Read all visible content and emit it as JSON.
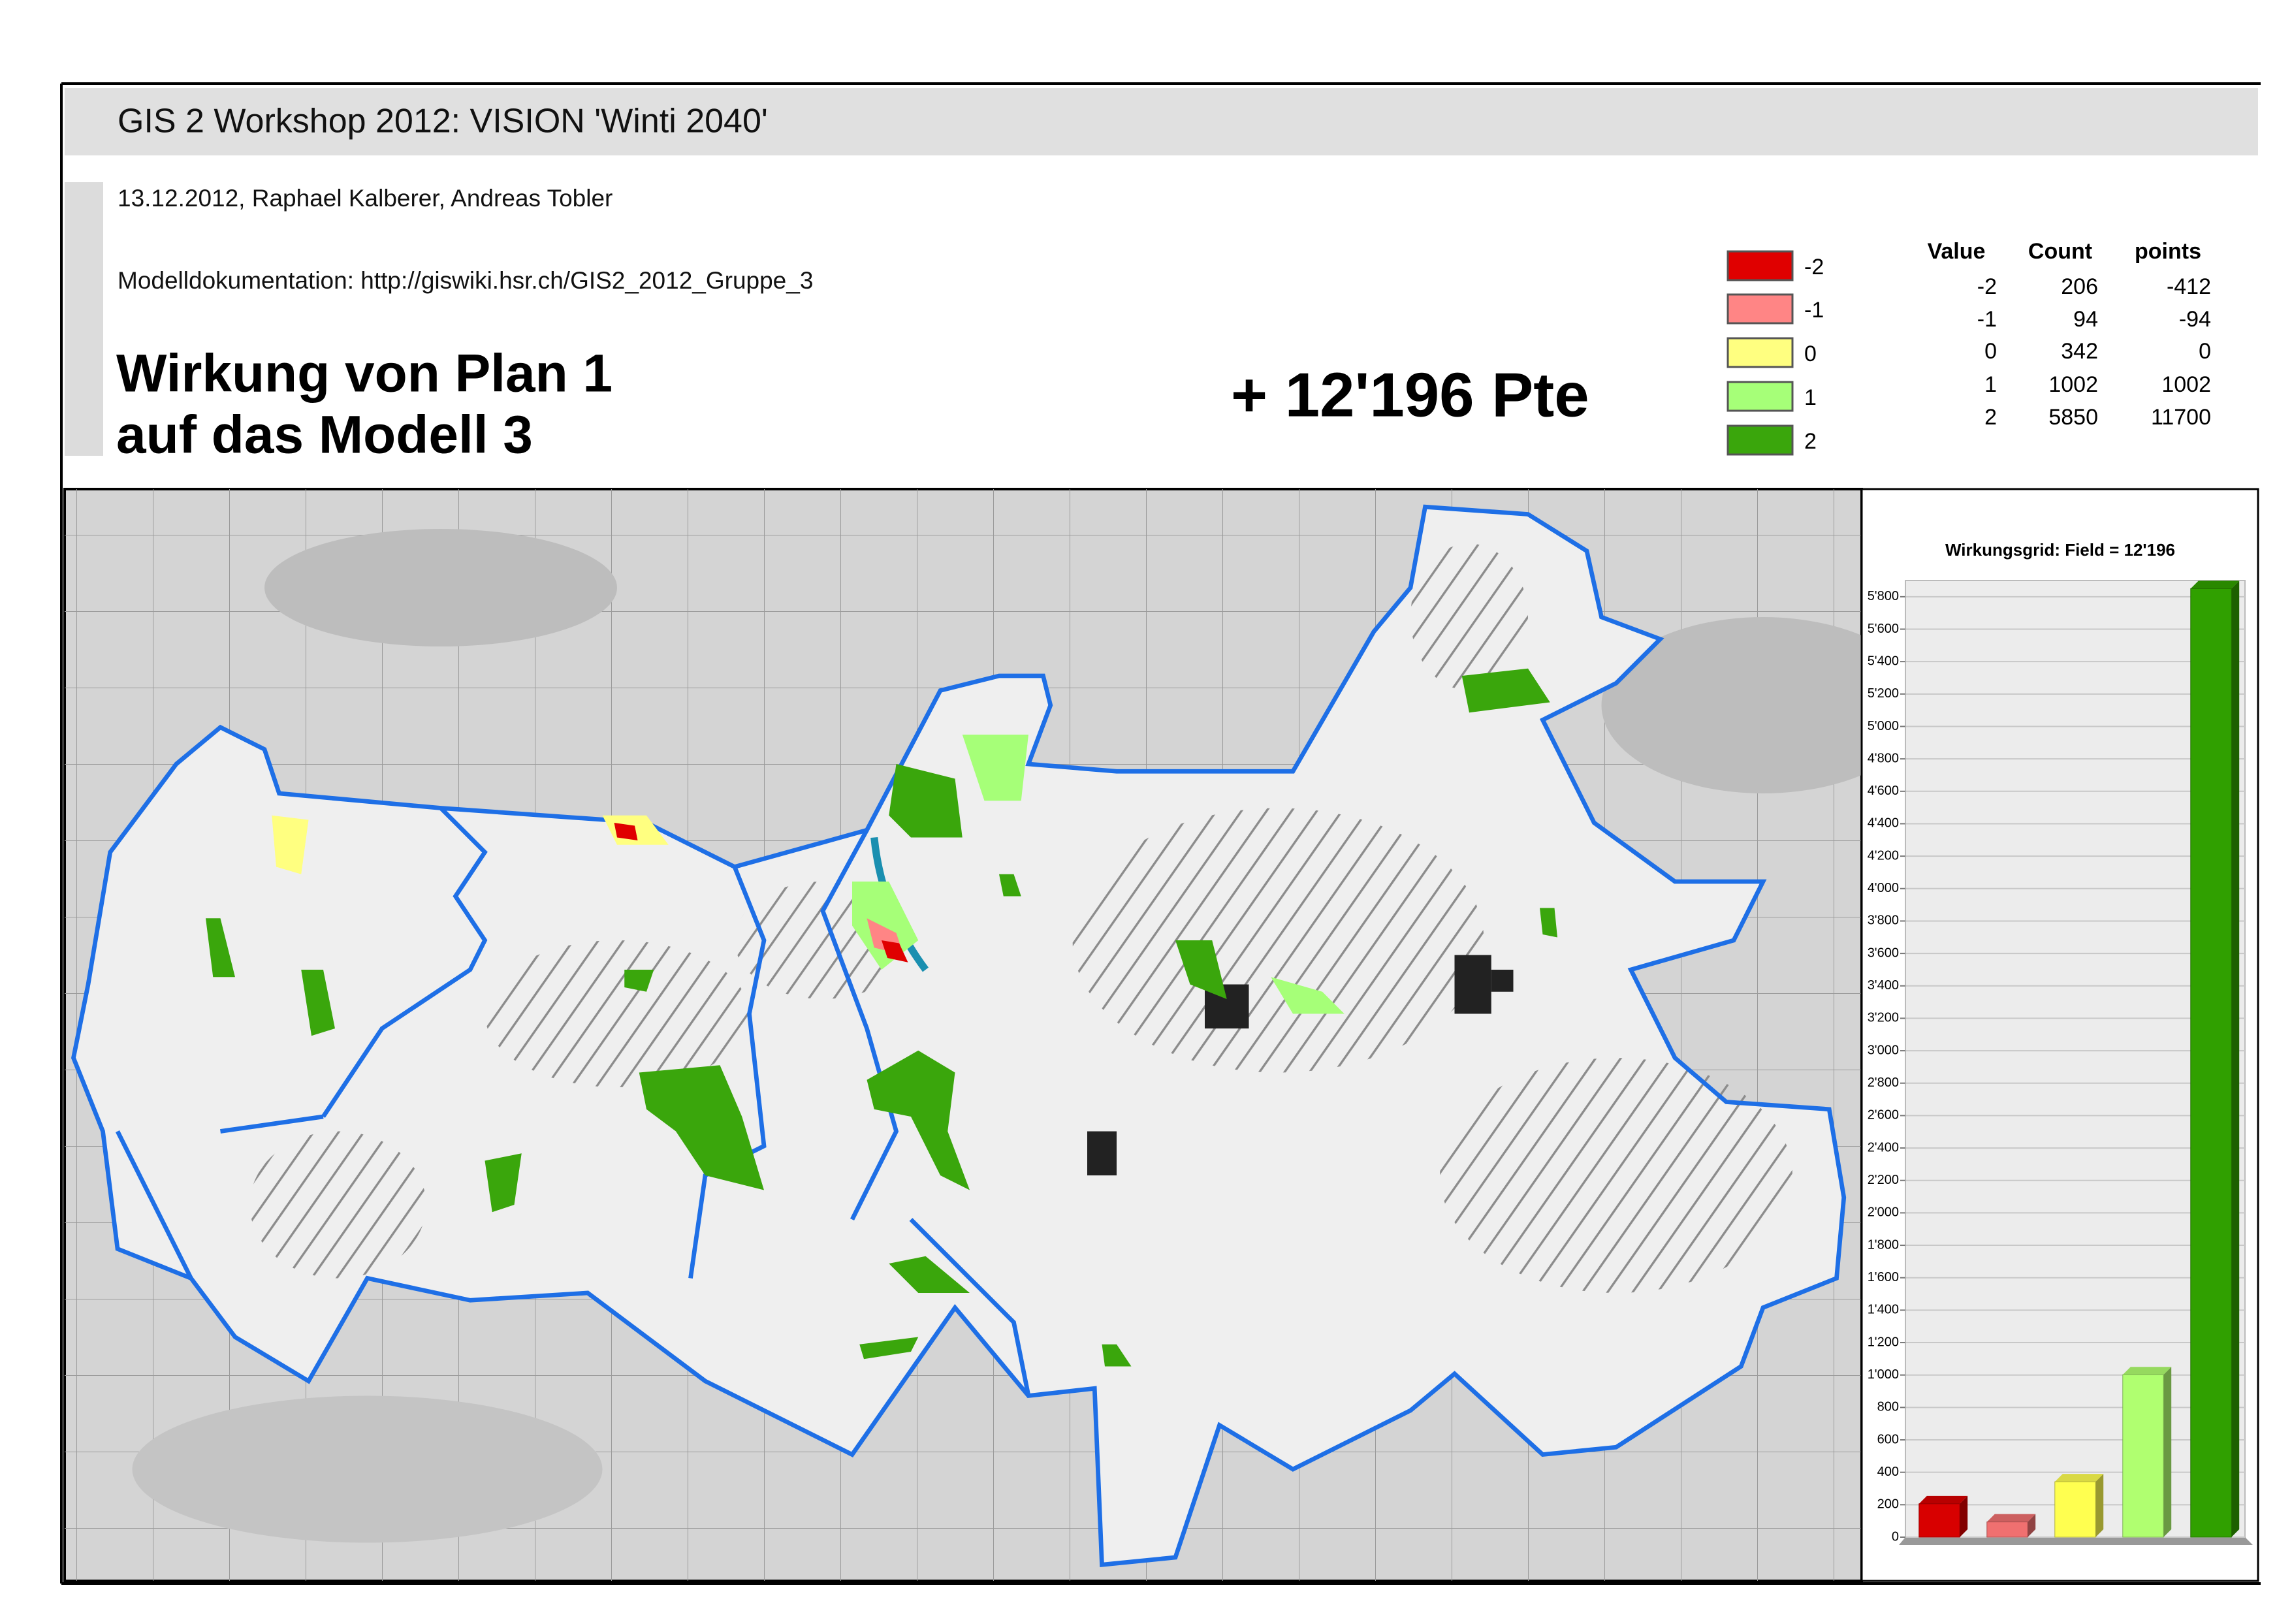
{
  "header": {
    "title": "GIS 2 Workshop 2012: VISION 'Winti 2040'",
    "date_authors": "13.12.2012, Raphael Kalberer, Andreas Tobler",
    "documentation": "Modelldokumentation: http://giswiki.hsr.ch/GIS2_2012_Gruppe_3"
  },
  "heading": [
    "Wirkung von Plan 1",
    "auf das Modell 3"
  ],
  "score": "+ 12'196 Pte",
  "legend": [
    {
      "label": "-2",
      "color": "#e00000"
    },
    {
      "label": "-1",
      "color": "#ff8585"
    },
    {
      "label": "0",
      "color": "#ffff80"
    },
    {
      "label": "1",
      "color": "#a6ff78"
    },
    {
      "label": "2",
      "color": "#3aa60c"
    }
  ],
  "table": {
    "columns": [
      "Value",
      "Count",
      "points"
    ],
    "rows": [
      [
        -2,
        206,
        -412
      ],
      [
        -1,
        94,
        -94
      ],
      [
        0,
        342,
        0
      ],
      [
        1,
        1002,
        1002
      ],
      [
        2,
        5850,
        11700
      ]
    ]
  },
  "chart_data": {
    "type": "bar",
    "title": "Wirkungsgrid: Field = 12'196",
    "categories": [
      null,
      null,
      null,
      null,
      null
    ],
    "values": [
      206,
      94,
      342,
      1002,
      5850
    ],
    "colors": [
      "#d80000",
      "#f07070",
      "#ffff50",
      "#b0ff70",
      "#30a000"
    ],
    "ylim": [
      0,
      5900
    ],
    "yticks": [
      0,
      200,
      400,
      600,
      800,
      {
        "value": 1000,
        "label": "1'000"
      },
      {
        "value": 1200,
        "label": "1'200"
      },
      {
        "value": 1400,
        "label": "1'400"
      },
      {
        "value": 1600,
        "label": "1'600"
      },
      {
        "value": 1800,
        "label": "1'800"
      },
      {
        "value": 2000,
        "label": "2'000"
      },
      {
        "value": 2200,
        "label": "2'200"
      },
      {
        "value": 2400,
        "label": "2'400"
      },
      {
        "value": 2600,
        "label": "2'600"
      },
      {
        "value": 2800,
        "label": "2'800"
      },
      {
        "value": 3000,
        "label": "3'000"
      },
      {
        "value": 3200,
        "label": "3'200"
      },
      {
        "value": 3400,
        "label": "3'400"
      },
      {
        "value": 3600,
        "label": "3'600"
      },
      {
        "value": 3800,
        "label": "3'800"
      },
      {
        "value": 4000,
        "label": "4'000"
      },
      {
        "value": 4200,
        "label": "4'200"
      },
      {
        "value": 4400,
        "label": "4'400"
      },
      {
        "value": 4600,
        "label": "4'600"
      },
      {
        "value": 4800,
        "label": "4'800"
      },
      {
        "value": 5000,
        "label": "5'000"
      },
      {
        "value": 5200,
        "label": "5'200"
      },
      {
        "value": 5400,
        "label": "5'400"
      },
      {
        "value": 5600,
        "label": "5'600"
      },
      {
        "value": 5800,
        "label": "5'800"
      }
    ],
    "grid": true
  }
}
